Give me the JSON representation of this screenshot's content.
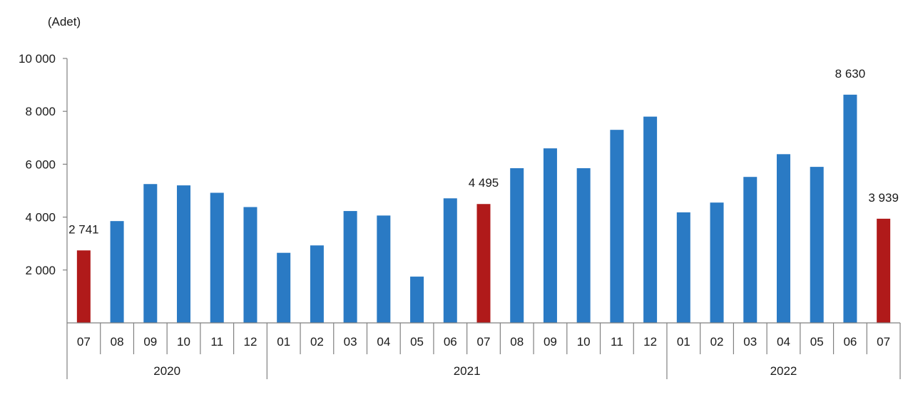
{
  "chart_data": {
    "type": "bar",
    "unit_label": "(Adet)",
    "categories": [
      "07",
      "08",
      "09",
      "10",
      "11",
      "12",
      "01",
      "02",
      "03",
      "04",
      "05",
      "06",
      "07",
      "08",
      "09",
      "10",
      "11",
      "12",
      "01",
      "02",
      "03",
      "04",
      "05",
      "06",
      "07"
    ],
    "groups": [
      {
        "label": "2020",
        "count": 6
      },
      {
        "label": "2021",
        "count": 12
      },
      {
        "label": "2022",
        "count": 7
      }
    ],
    "series": [
      {
        "values": [
          2741,
          3850,
          5250,
          5200,
          4920,
          4380,
          2650,
          2930,
          4230,
          4060,
          1750,
          4710,
          4495,
          5850,
          6600,
          5850,
          7300,
          7800,
          4180,
          4550,
          5520,
          6380,
          5900,
          8630,
          3939
        ]
      }
    ],
    "highlight_indices": [
      0,
      12,
      24
    ],
    "data_labels": [
      {
        "index": 0,
        "text": "2 741"
      },
      {
        "index": 12,
        "text": "4 495"
      },
      {
        "index": 23,
        "text": "8 630"
      },
      {
        "index": 24,
        "text": "3 939"
      }
    ],
    "yticks": [
      {
        "value": 2000,
        "label": "2 000"
      },
      {
        "value": 4000,
        "label": "4 000"
      },
      {
        "value": 6000,
        "label": "6 000"
      },
      {
        "value": 8000,
        "label": "8 000"
      },
      {
        "value": 10000,
        "label": "10 000"
      }
    ],
    "ylim": [
      0,
      10000
    ],
    "grid": false,
    "colors": {
      "bar": "#2a7ac4",
      "highlight": "#b01a1a",
      "axis": "#808080"
    }
  }
}
